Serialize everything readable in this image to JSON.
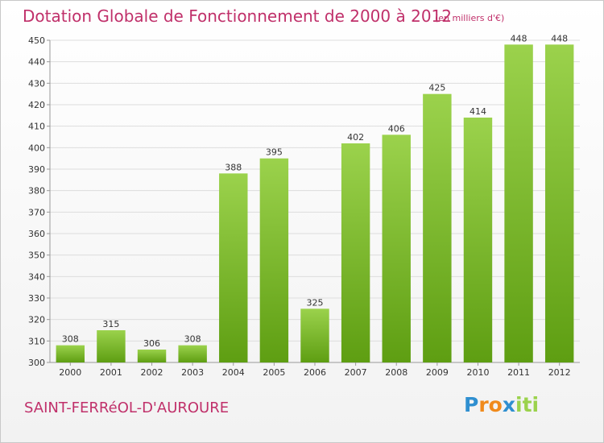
{
  "chart_data": {
    "type": "bar",
    "title": "Dotation Globale de Fonctionnement de 2000 à 2012",
    "unit_note": "(en milliers d'€)",
    "categories": [
      "2000",
      "2001",
      "2002",
      "2003",
      "2004",
      "2005",
      "2006",
      "2007",
      "2008",
      "2009",
      "2010",
      "2011",
      "2012"
    ],
    "values": [
      308,
      315,
      306,
      308,
      388,
      395,
      325,
      402,
      406,
      425,
      414,
      448,
      448
    ],
    "ylim": [
      300,
      450
    ],
    "yticks": [
      300,
      310,
      320,
      330,
      340,
      350,
      360,
      370,
      380,
      390,
      400,
      410,
      420,
      430,
      440,
      450
    ],
    "xlabel": "",
    "ylabel": "",
    "grid": true,
    "colors": {
      "bar_light": "#9bd24c",
      "bar_dark": "#5e9e12",
      "grid": "#dddddd",
      "axis": "#999999",
      "title": "#c0306a"
    }
  },
  "footer": {
    "commune": "SAINT-FERRéOL-D'AUROURE",
    "brand_letters": [
      "P",
      "r",
      "o",
      "x",
      "i",
      "t",
      "i"
    ],
    "brand_colors": [
      "#2f8fd0",
      "#f08a1c",
      "#f08a1c",
      "#2f8fd0",
      "#9bd24c",
      "#9bd24c",
      "#9bd24c"
    ]
  }
}
